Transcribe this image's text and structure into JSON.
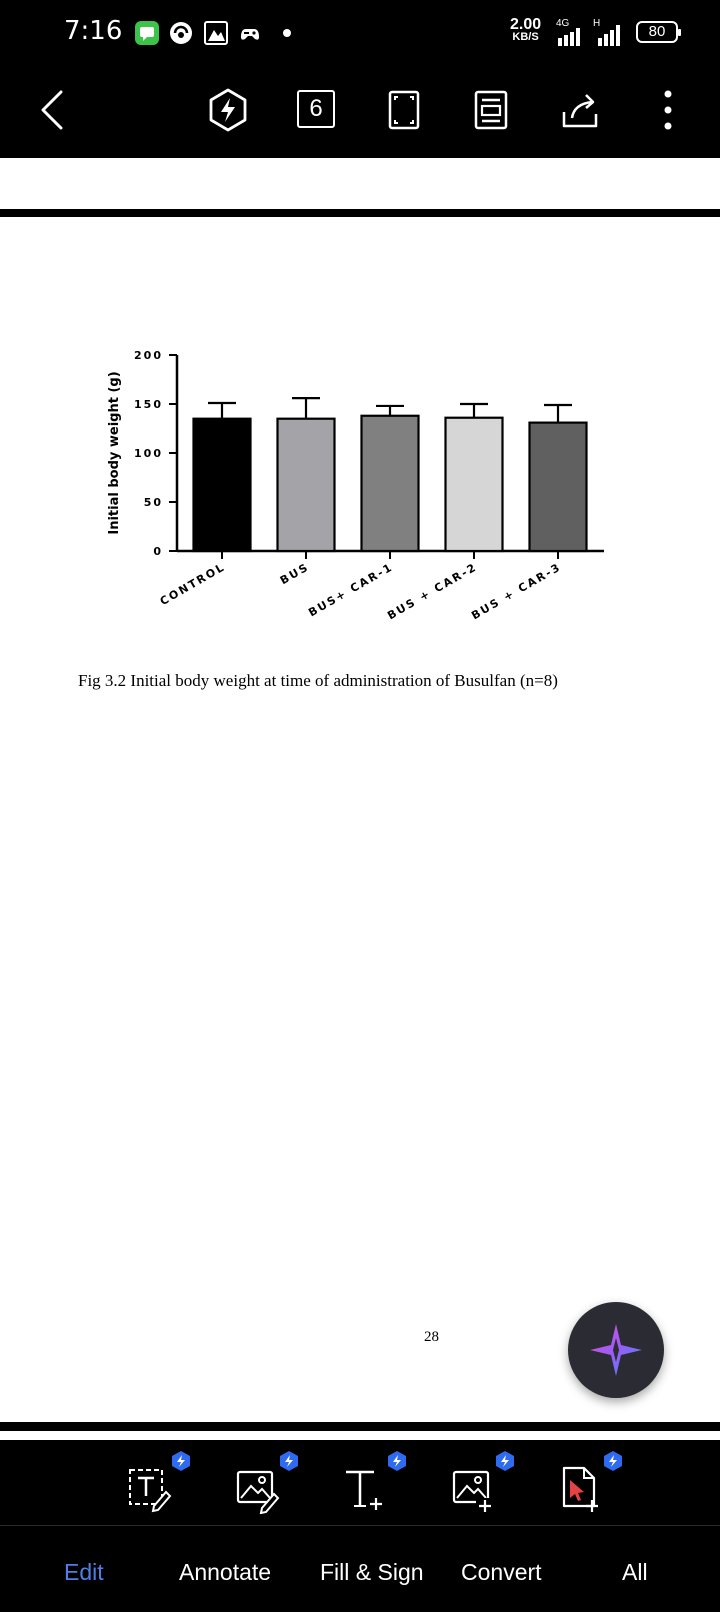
{
  "status_bar": {
    "time": "7:16",
    "notification_icons": [
      "messages-icon",
      "vpn-icon",
      "photo-app-icon",
      "game-icon",
      "more-dot-icon"
    ],
    "net_speed_value": "2.00",
    "net_speed_unit": "KB/S",
    "net_type": "4G",
    "sim2_label": "H",
    "battery_level": "80"
  },
  "toolbar": {
    "back_icon": "back-chevron-icon",
    "page_count": "6",
    "icons": [
      "ai-bolt-hexagon-icon",
      "page-count-icon",
      "fullscreen-icon",
      "reading-mode-icon",
      "share-icon",
      "more-vertical-icon"
    ]
  },
  "document": {
    "figure_caption": "Fig 3.2 Initial body weight at time of administration of Busulfan (n=8)",
    "page_number": "28"
  },
  "chart_data": {
    "type": "bar",
    "title": "",
    "xlabel": "",
    "ylabel": "Initial body weight (g)",
    "ylim": [
      0,
      200
    ],
    "yticks": [
      0,
      50,
      100,
      150,
      200
    ],
    "categories": [
      "CONTROL",
      "BUS",
      "BUS+ CAR-1",
      "BUS + CAR-2",
      "BUS + CAR-3"
    ],
    "values": [
      135,
      135,
      138,
      136,
      131
    ],
    "errors": [
      16,
      21,
      10,
      14,
      18
    ],
    "bar_colors": [
      "#000000",
      "#a3a3a8",
      "#808080",
      "#d6d6d6",
      "#606060"
    ],
    "grid": false,
    "legend": "none"
  },
  "ai_button": {
    "icon": "ai-sparkle-icon"
  },
  "bottom_tools": [
    {
      "icon": "edit-text-icon"
    },
    {
      "icon": "edit-image-icon"
    },
    {
      "icon": "add-text-icon"
    },
    {
      "icon": "add-image-icon"
    },
    {
      "icon": "pdf-cursor-icon"
    }
  ],
  "tabs": [
    {
      "label": "Edit",
      "active": true
    },
    {
      "label": "Annotate",
      "active": false
    },
    {
      "label": "Fill & Sign",
      "active": false
    },
    {
      "label": "Convert",
      "active": false
    },
    {
      "label": "All",
      "active": false
    }
  ],
  "colors": {
    "active_tab": "#4f7fe6",
    "badge": "#2f6bf0"
  }
}
